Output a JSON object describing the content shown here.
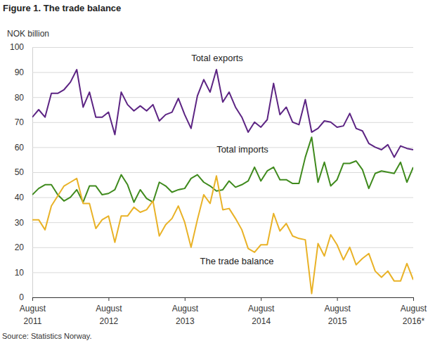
{
  "chart_data": {
    "type": "line",
    "title": "Figure 1. The trade balance",
    "y_label": "NOK billion",
    "source": "Source: Statistics Norway.",
    "categories": [
      "August 2011",
      null,
      null,
      null,
      null,
      null,
      null,
      null,
      null,
      null,
      null,
      null,
      "August 2012",
      null,
      null,
      null,
      null,
      null,
      null,
      null,
      null,
      null,
      null,
      null,
      "August 2013",
      null,
      null,
      null,
      null,
      null,
      null,
      null,
      null,
      null,
      null,
      null,
      "August 2014",
      null,
      null,
      null,
      null,
      null,
      null,
      null,
      null,
      null,
      null,
      null,
      "August 2015",
      null,
      null,
      null,
      null,
      null,
      null,
      null,
      null,
      null,
      null,
      null,
      "August 2016*"
    ],
    "series": [
      {
        "name": "Total exports",
        "color": "#5c2483",
        "values": [
          72,
          75,
          72,
          81.5,
          81.5,
          83,
          86,
          91,
          76,
          82,
          72,
          72,
          74,
          65,
          82,
          77,
          74.5,
          76.5,
          74.5,
          77,
          70.5,
          73,
          74,
          79.5,
          73,
          67.5,
          80.5,
          87,
          82,
          91,
          78,
          82,
          76,
          72,
          66,
          70,
          68,
          71,
          85.5,
          73,
          76,
          70,
          69,
          79,
          66,
          67.5,
          70.5,
          70,
          68,
          68.5,
          73.5,
          67.5,
          66.5,
          61.5,
          60,
          59,
          61,
          56,
          60.5,
          59.5,
          59
        ]
      },
      {
        "name": "Total imports",
        "color": "#3f8a1d",
        "values": [
          41,
          43.5,
          45,
          45,
          41,
          38.5,
          40,
          43,
          38,
          44.5,
          44.5,
          41,
          41.5,
          43,
          49,
          45,
          38,
          43,
          39.5,
          38,
          46,
          44.5,
          42,
          43,
          43.5,
          47.5,
          49,
          46,
          44.5,
          42.5,
          43,
          46.5,
          44,
          45,
          46.5,
          52,
          46.5,
          50.5,
          52,
          47,
          47,
          45.5,
          45.5,
          56,
          64,
          46,
          54,
          44.5,
          47,
          53.5,
          53.5,
          54.5,
          51,
          43.5,
          49.5,
          50.5,
          50,
          49.5,
          54,
          46,
          52
        ]
      },
      {
        "name": "The trade balance",
        "color": "#e9b227",
        "values": [
          31,
          31,
          27,
          36.5,
          40.5,
          44.5,
          46,
          47.5,
          37.5,
          37.5,
          27.5,
          31,
          32.5,
          22,
          32.5,
          32.5,
          36,
          34,
          35,
          38.5,
          24.5,
          29,
          31.5,
          36.5,
          30,
          20,
          31,
          41,
          37.5,
          48.5,
          35,
          35.5,
          31.5,
          27,
          19.5,
          18,
          21,
          21,
          33.5,
          26.5,
          29.5,
          24.5,
          23.5,
          23,
          1.5,
          21.5,
          16.5,
          25,
          21,
          15,
          20,
          13,
          15.5,
          17.5,
          10.5,
          8,
          10.5,
          6.5,
          6.5,
          13.5,
          7
        ]
      }
    ],
    "ylim": [
      0,
      100
    ],
    "yticks": [
      0,
      10,
      20,
      30,
      40,
      50,
      60,
      70,
      80,
      90,
      100
    ],
    "grid": true
  }
}
